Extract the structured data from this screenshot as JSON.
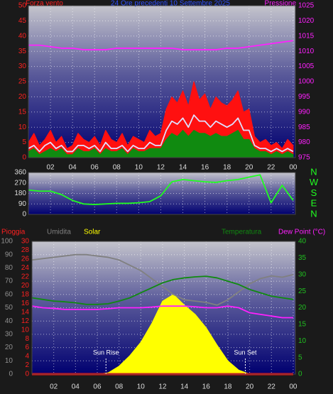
{
  "chart_data": [
    {
      "type": "line",
      "title": "24 Ore precedenti  10 Settembre 2025",
      "ylabel": "Forza vento",
      "xlim": [
        0,
        24.2
      ],
      "xticks": [
        {
          "value": 2,
          "label": "02"
        },
        {
          "value": 4,
          "label": "04"
        },
        {
          "value": 6,
          "label": "06"
        },
        {
          "value": 8,
          "label": "08"
        },
        10,
        12,
        14,
        16,
        18,
        20,
        22,
        {
          "value": 24,
          "label": "00"
        }
      ],
      "ylim": [
        0,
        50
      ],
      "yticks": [
        0,
        5,
        10,
        15,
        20,
        25,
        30,
        35,
        40,
        45,
        50
      ],
      "y2lim": [
        975,
        1025
      ],
      "y2ticks": [
        975,
        980,
        985,
        990,
        995,
        1000,
        1005,
        1010,
        1015,
        1020,
        1025
      ],
      "grid": true,
      "x": [
        0,
        0.5,
        1,
        1.5,
        2,
        2.5,
        3,
        3.5,
        4,
        4.5,
        5,
        5.5,
        6,
        6.5,
        7,
        7.5,
        8,
        8.5,
        9,
        9.5,
        10,
        10.5,
        11,
        11.5,
        12,
        12.5,
        13,
        13.5,
        14,
        14.5,
        15,
        15.5,
        16,
        16.5,
        17,
        17.5,
        18,
        18.5,
        19,
        19.5,
        20,
        20.5,
        21,
        21.5,
        22,
        22.5,
        23,
        23.5,
        24
      ],
      "series": [
        {
          "color": "#ff1010",
          "fill": true,
          "values": [
            5,
            8,
            4,
            6,
            9,
            5,
            7,
            3,
            4,
            8,
            6,
            5,
            7,
            4,
            9,
            6,
            5,
            8,
            4,
            7,
            6,
            5,
            9,
            7,
            8,
            16,
            20,
            18,
            22,
            17,
            25,
            19,
            21,
            16,
            20,
            18,
            17,
            19,
            22,
            15,
            16,
            7,
            5,
            6,
            4,
            5,
            3,
            6,
            4
          ]
        },
        {
          "color": "#e0e0ff",
          "fill": false,
          "values": [
            3,
            4,
            2,
            4,
            5,
            3,
            4,
            2,
            2,
            4,
            4,
            3,
            4,
            2,
            5,
            3,
            3,
            4,
            2,
            4,
            3,
            3,
            5,
            4,
            4,
            9,
            12,
            11,
            13,
            10,
            14,
            12,
            12,
            10,
            12,
            11,
            10,
            11,
            13,
            9,
            9,
            4,
            3,
            3,
            2,
            3,
            2,
            3,
            2
          ]
        },
        {
          "color": "#108a10",
          "fill": true,
          "values": [
            2,
            3,
            1,
            2,
            3,
            2,
            3,
            1,
            1,
            3,
            2,
            2,
            3,
            1,
            3,
            2,
            2,
            3,
            1,
            3,
            2,
            2,
            3,
            3,
            3,
            6,
            8,
            7,
            9,
            7,
            9,
            8,
            8,
            7,
            8,
            7,
            7,
            8,
            9,
            6,
            6,
            3,
            2,
            2,
            1,
            2,
            1,
            2,
            1
          ]
        },
        {
          "name": "Pressione",
          "color": "#ff20ff",
          "axis": "y2",
          "fill": false,
          "x": [
            0,
            1,
            2,
            3,
            4,
            5,
            6,
            7,
            8,
            9,
            10,
            11,
            12,
            13,
            14,
            15,
            16,
            17,
            18,
            19,
            20,
            21,
            22,
            23,
            24
          ],
          "values": [
            1012,
            1012,
            1011.5,
            1011,
            1011,
            1010.5,
            1010.5,
            1010.5,
            1011,
            1011,
            1011,
            1011,
            1011,
            1011,
            1010.5,
            1010.5,
            1010.5,
            1010.5,
            1011,
            1011,
            1011.5,
            1012,
            1012.5,
            1013,
            1013.5
          ]
        }
      ]
    },
    {
      "type": "line",
      "xlim": [
        0,
        24.2
      ],
      "ylim": [
        0,
        360
      ],
      "yticks": [
        0,
        90,
        180,
        270,
        360
      ],
      "y2ticks": [
        {
          "value": 0,
          "label": "N"
        },
        {
          "value": 90,
          "label": "E"
        },
        {
          "value": 180,
          "label": "S"
        },
        {
          "value": 270,
          "label": "W"
        },
        {
          "value": 360,
          "label": "N"
        }
      ],
      "grid": true,
      "x": [
        0,
        1,
        2,
        3,
        4,
        5,
        6,
        7,
        8,
        9,
        10,
        11,
        12,
        13,
        14,
        15,
        16,
        17,
        18,
        19,
        20,
        21,
        22,
        23,
        24
      ],
      "series": [
        {
          "color": "#20ff20",
          "fill": false,
          "values": [
            210,
            200,
            200,
            170,
            120,
            90,
            85,
            90,
            95,
            95,
            100,
            110,
            160,
            280,
            300,
            290,
            280,
            275,
            290,
            300,
            320,
            340,
            100,
            250,
            120
          ]
        }
      ]
    },
    {
      "type": "line",
      "xlim": [
        0,
        24.2
      ],
      "xticks": [
        {
          "value": 2,
          "label": "02"
        },
        {
          "value": 4,
          "label": "04"
        },
        {
          "value": 6,
          "label": "06"
        },
        {
          "value": 8,
          "label": "08"
        },
        10,
        12,
        14,
        16,
        18,
        20,
        22,
        {
          "value": 24,
          "label": "00"
        }
      ],
      "ylim": [
        0,
        100
      ],
      "yticks": [
        0,
        10,
        20,
        30,
        40,
        50,
        60,
        70,
        80,
        90,
        100
      ],
      "y2lim": [
        0,
        40
      ],
      "y2ticks": [
        0,
        5,
        10,
        15,
        20,
        25,
        30,
        35,
        40
      ],
      "y3lim": [
        0,
        30
      ],
      "y3ticks": [
        0,
        2,
        4,
        6,
        8,
        10,
        12,
        14,
        16,
        18,
        20,
        22,
        24,
        26,
        28,
        30
      ],
      "grid": true,
      "x": [
        0,
        1,
        2,
        3,
        4,
        5,
        6,
        7,
        8,
        9,
        10,
        11,
        12,
        13,
        14,
        15,
        16,
        17,
        18,
        19,
        20,
        21,
        22,
        23,
        24
      ],
      "series": [
        {
          "name": "Solar",
          "color": "#ffff00",
          "fill": true,
          "values": [
            0,
            0,
            0,
            0,
            0,
            0,
            0,
            1,
            6,
            14,
            24,
            38,
            55,
            60,
            52,
            45,
            35,
            22,
            10,
            3,
            0,
            0,
            0,
            0,
            0
          ]
        },
        {
          "name": "Umidita",
          "color": "#808080",
          "fill": false,
          "values": [
            86,
            87,
            88,
            89,
            90,
            90,
            89,
            88,
            86,
            82,
            78,
            72,
            66,
            60,
            56,
            55,
            54,
            52,
            56,
            62,
            68,
            72,
            74,
            73,
            75
          ]
        },
        {
          "name": "Temperatura",
          "color": "#108a10",
          "axis": "y2",
          "fill": false,
          "values": [
            23,
            22.5,
            22,
            21.8,
            21.5,
            21,
            21,
            21.2,
            22,
            23,
            24.5,
            26,
            27.5,
            28.5,
            29,
            29.3,
            29.5,
            29,
            28,
            27,
            25.5,
            24.5,
            23.5,
            23,
            22.5
          ]
        },
        {
          "name": "Dew Point (°C)",
          "color": "#ff20ff",
          "axis": "y2",
          "fill": false,
          "values": [
            20.5,
            20,
            19.8,
            19.5,
            19.5,
            19.5,
            19.5,
            19.7,
            20,
            20,
            20,
            20.2,
            20.5,
            20.5,
            20.5,
            20.3,
            20,
            20,
            20.5,
            20,
            18.5,
            18,
            17.5,
            17,
            17
          ]
        },
        {
          "name": "Pioggia",
          "color": "#ff1010",
          "axis": "y3",
          "fill": false,
          "x": [
            0,
            24
          ],
          "values": [
            0,
            0
          ]
        }
      ],
      "annotations": [
        {
          "text": "Sun Rise",
          "x": 6.8
        },
        {
          "text": "Sun Set",
          "x": 19.6
        }
      ]
    }
  ]
}
